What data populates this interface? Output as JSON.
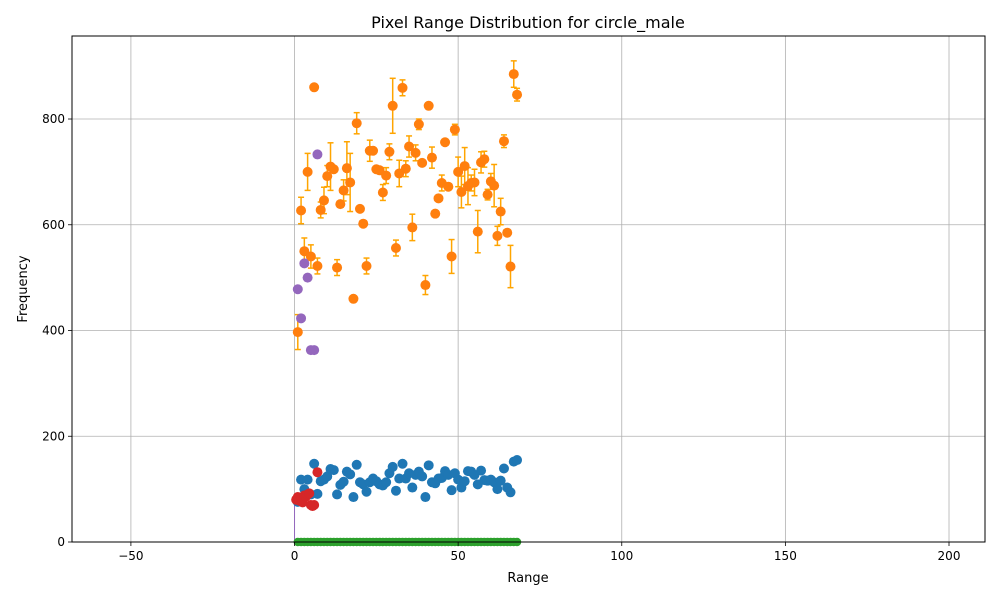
{
  "chart_data": {
    "type": "scatter",
    "title": "Pixel Range Distribution for circle_male",
    "xlabel": "Range",
    "ylabel": "Frequency",
    "xlim": [
      -68,
      211
    ],
    "ylim": [
      0,
      957
    ],
    "x_ticks": [
      "-50",
      "0",
      "50",
      "100",
      "150",
      "200"
    ],
    "y_ticks": [
      "0",
      "200",
      "400",
      "600",
      "800"
    ],
    "grid": true,
    "colors": {
      "blue": "#1f77b4",
      "orange": "#ff7f0e",
      "green": "#2ca02c",
      "red": "#d62728",
      "purple": "#9467bd",
      "errorbar": "#ffa500"
    },
    "series": [
      {
        "color": "#ff7f0e",
        "x": [
          1,
          2,
          3,
          4,
          5,
          6,
          7,
          8,
          9,
          10,
          11,
          12,
          13,
          14,
          15,
          16,
          17,
          18,
          19,
          20,
          21,
          22,
          23,
          24,
          25,
          26,
          27,
          28,
          29,
          30,
          31,
          32,
          33,
          34,
          35,
          36,
          37,
          38,
          39,
          40,
          41,
          42,
          43,
          44,
          45,
          46,
          47,
          48,
          49,
          50,
          51,
          52,
          53,
          54,
          55,
          56,
          57,
          58,
          59,
          60,
          61,
          62,
          63,
          64,
          65,
          66,
          67,
          68
        ],
        "y": [
          397,
          627,
          550,
          700,
          540,
          860,
          522,
          628,
          646,
          692,
          710,
          705,
          519,
          639,
          665,
          707,
          680,
          460,
          792,
          630,
          602,
          522,
          740,
          740,
          705,
          703,
          661,
          693,
          738,
          825,
          556,
          697,
          859,
          706,
          748,
          595,
          736,
          790,
          717,
          486,
          825,
          727,
          621,
          650,
          679,
          756,
          672,
          540,
          780,
          700,
          662,
          711,
          673,
          679,
          680,
          587,
          718,
          724,
          657,
          682,
          674,
          579,
          625,
          758,
          585,
          521,
          885,
          846
        ],
        "err": [
          33,
          25,
          25,
          35,
          22,
          0,
          15,
          15,
          25,
          20,
          45,
          0,
          15,
          0,
          20,
          50,
          55,
          0,
          20,
          0,
          0,
          15,
          20,
          0,
          0,
          0,
          15,
          15,
          15,
          52,
          15,
          25,
          15,
          15,
          20,
          25,
          15,
          10,
          0,
          18,
          0,
          20,
          0,
          0,
          15,
          0,
          0,
          32,
          10,
          28,
          30,
          35,
          35,
          15,
          25,
          40,
          20,
          15,
          10,
          15,
          40,
          18,
          25,
          12,
          0,
          40,
          25,
          12
        ]
      },
      {
        "color": "#1f77b4",
        "x": [
          1,
          2,
          3,
          4,
          5,
          6,
          7,
          8,
          9,
          10,
          11,
          12,
          13,
          14,
          15,
          16,
          17,
          18,
          19,
          20,
          21,
          22,
          23,
          24,
          25,
          26,
          27,
          28,
          29,
          30,
          31,
          32,
          33,
          34,
          35,
          36,
          37,
          38,
          39,
          40,
          41,
          42,
          43,
          44,
          45,
          46,
          47,
          48,
          49,
          50,
          51,
          52,
          53,
          54,
          55,
          56,
          57,
          58,
          59,
          60,
          61,
          62,
          63,
          64,
          65,
          66,
          67,
          68
        ],
        "y": [
          76,
          118,
          100,
          118,
          90,
          148,
          91,
          115,
          118,
          124,
          138,
          136,
          90,
          108,
          114,
          133,
          128,
          85,
          146,
          113,
          109,
          95,
          113,
          120,
          115,
          109,
          107,
          113,
          130,
          142,
          97,
          120,
          148,
          120,
          130,
          103,
          127,
          133,
          124,
          85,
          145,
          113,
          111,
          120,
          121,
          134,
          127,
          98,
          130,
          118,
          103,
          115,
          134,
          133,
          127,
          109,
          135,
          117,
          116,
          118,
          113,
          100,
          116,
          139,
          103,
          94,
          152,
          155
        ]
      },
      {
        "color": "#2ca02c",
        "x": [
          1,
          2,
          3,
          4,
          5,
          6,
          7,
          8,
          9,
          10,
          11,
          12,
          13,
          14,
          15,
          16,
          17,
          18,
          19,
          20,
          21,
          22,
          23,
          24,
          25,
          26,
          27,
          28,
          29,
          30,
          31,
          32,
          33,
          34,
          35,
          36,
          37,
          38,
          39,
          40,
          41,
          42,
          43,
          44,
          45,
          46,
          47,
          48,
          49,
          50,
          51,
          52,
          53,
          54,
          55,
          56,
          57,
          58,
          59,
          60,
          61,
          62,
          63,
          64,
          65,
          66,
          67,
          68
        ],
        "y": [
          0,
          0,
          0,
          0,
          0,
          0,
          0,
          0,
          0,
          0,
          0,
          0,
          0,
          0,
          0,
          0,
          0,
          0,
          0,
          0,
          0,
          0,
          0,
          0,
          0,
          0,
          0,
          0,
          0,
          0,
          0,
          0,
          0,
          0,
          0,
          0,
          0,
          0,
          0,
          0,
          0,
          0,
          0,
          0,
          0,
          0,
          0,
          0,
          0,
          0,
          0,
          0,
          0,
          0,
          0,
          0,
          0,
          0,
          0,
          0,
          0,
          0,
          0,
          0,
          0,
          0,
          0,
          0
        ]
      },
      {
        "color": "#d62728",
        "x": [
          0.5,
          1,
          1.5,
          2,
          2.5,
          3,
          3.5,
          4,
          4.5,
          5,
          5.5,
          6,
          7
        ],
        "y": [
          80,
          85,
          78,
          82,
          75,
          88,
          86,
          90,
          92,
          70,
          68,
          70,
          132
        ]
      },
      {
        "color": "#9467bd",
        "x": [
          1,
          2,
          3,
          4,
          5,
          6,
          7
        ],
        "y": [
          478,
          423,
          527,
          500,
          363,
          363,
          733
        ]
      }
    ]
  }
}
